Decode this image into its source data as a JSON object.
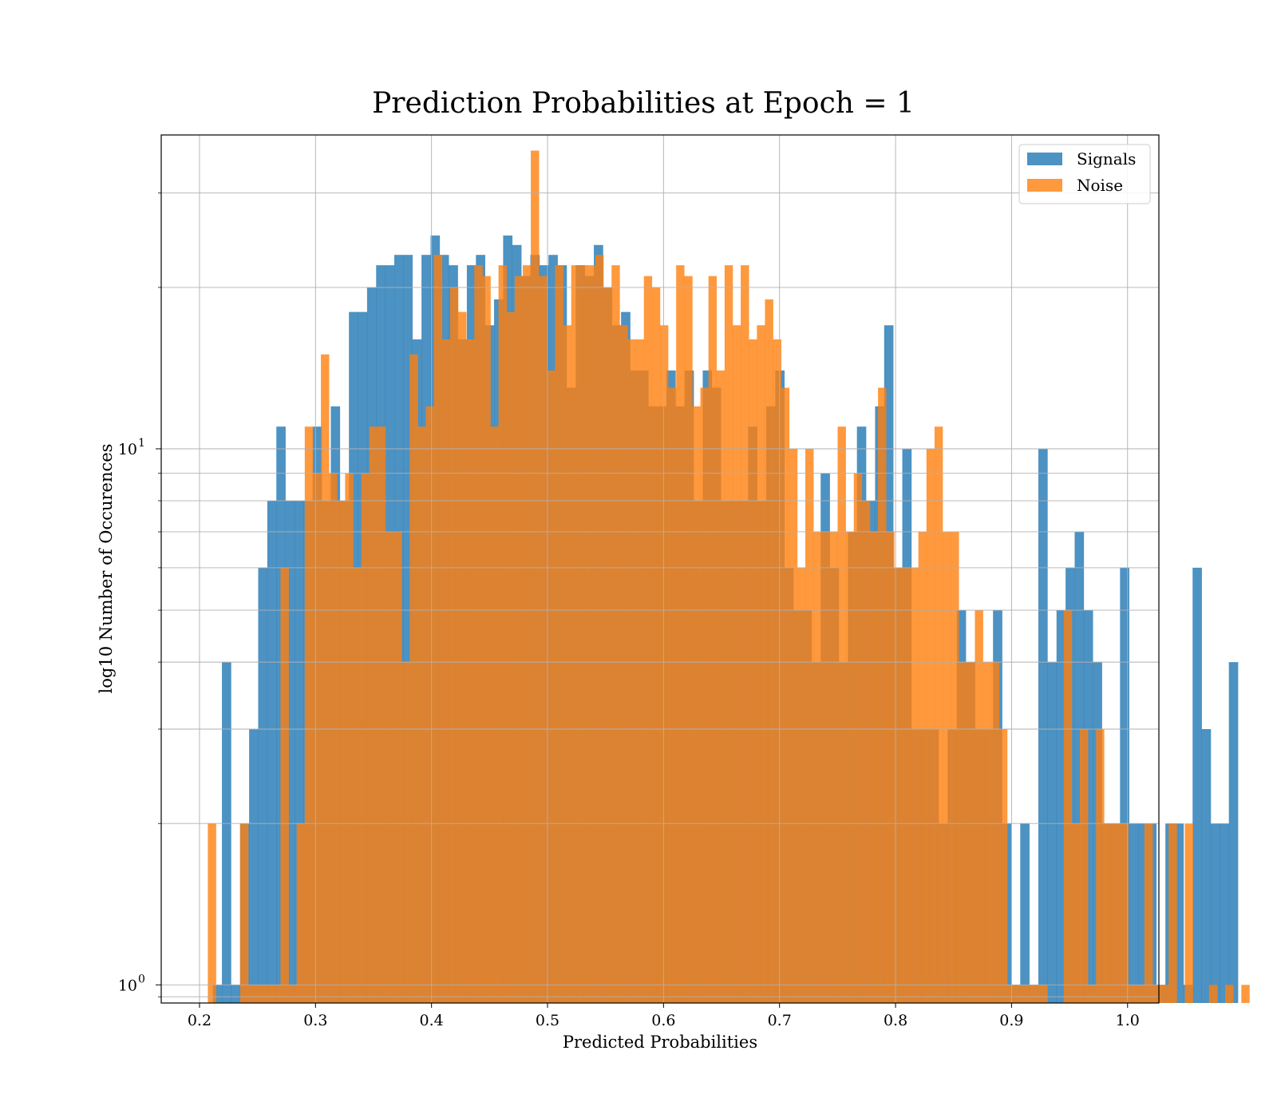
{
  "chart_data": {
    "type": "bar",
    "title": "Prediction Probabilities at Epoch = 1",
    "xlabel": "Predicted Probabilities",
    "ylabel": "log10 Number of Occurences",
    "xlim": [
      0.167,
      1.027
    ],
    "ylim": [
      0.925,
      38.5
    ],
    "yscale": "log",
    "grid": true,
    "legend_position": "top-right",
    "xticks": [
      "0.2",
      "0.3",
      "0.4",
      "0.5",
      "0.6",
      "0.7",
      "0.8",
      "0.9",
      "1.0"
    ],
    "xtick_values": [
      0.2,
      0.3,
      0.4,
      0.5,
      0.6,
      0.7,
      0.8,
      0.9,
      1.0
    ],
    "yticks": [
      {
        "value": 1,
        "base": "10",
        "exp": "0"
      },
      {
        "value": 10,
        "base": "10",
        "exp": "1"
      }
    ],
    "series": [
      {
        "name": "Signals",
        "color": "#1f77b4",
        "opacity": 0.8,
        "bin_start": 0.2115,
        "bin_width": 0.00782,
        "values": [
          1,
          4,
          1,
          2,
          3,
          6,
          8,
          11,
          8,
          8,
          8,
          11,
          8,
          12,
          8,
          18,
          18,
          20,
          22,
          22,
          23,
          23,
          16,
          23,
          25,
          23,
          22,
          16,
          22,
          23,
          17,
          19,
          25,
          24,
          21,
          23,
          22,
          23,
          22,
          13,
          22,
          21,
          24,
          20,
          17,
          18,
          14,
          14,
          12,
          12,
          14,
          12,
          14,
          8,
          14,
          13,
          8,
          8,
          8,
          11,
          8,
          12,
          14,
          6,
          5,
          5,
          4,
          9,
          6,
          4,
          7,
          11,
          8,
          12,
          17,
          6,
          10,
          3,
          3,
          3,
          2,
          3,
          5,
          4,
          3,
          3,
          5,
          2,
          1,
          2,
          1,
          10,
          4,
          5,
          6,
          7,
          5,
          4,
          2,
          2,
          6,
          2,
          2,
          2,
          1,
          2,
          2,
          1,
          6,
          3,
          2,
          2,
          4
        ]
      },
      {
        "name": "Noise",
        "color": "#ff7f0e",
        "opacity": 0.8,
        "bin_start": 0.2072,
        "bin_width": 0.00696,
        "values": [
          2,
          0,
          0,
          0,
          2,
          1,
          1,
          1,
          1,
          6,
          1,
          2,
          11,
          9,
          15,
          9,
          8,
          9,
          6,
          9,
          11,
          11,
          7,
          7,
          4,
          15,
          11,
          12,
          23,
          16,
          20,
          18,
          16,
          22,
          21,
          11,
          22,
          18,
          21,
          22,
          36,
          21,
          14,
          22,
          17,
          22,
          22,
          22,
          23,
          20,
          22,
          17,
          16,
          16,
          21,
          20,
          17,
          13,
          22,
          21,
          12,
          13,
          21,
          14,
          22,
          17,
          22,
          16,
          17,
          19,
          16,
          13,
          10,
          6,
          10,
          7,
          7,
          7,
          11,
          7,
          9,
          8,
          7,
          13,
          7,
          6,
          6,
          6,
          7,
          10,
          11,
          7,
          7,
          4,
          4,
          5,
          4,
          4,
          3,
          1,
          1,
          1,
          1,
          1,
          0,
          0,
          5,
          2,
          3,
          1,
          3,
          2,
          2,
          2,
          1,
          1,
          2,
          1,
          1,
          2,
          0,
          2,
          0,
          0,
          1,
          0,
          1,
          0,
          1
        ]
      }
    ]
  }
}
